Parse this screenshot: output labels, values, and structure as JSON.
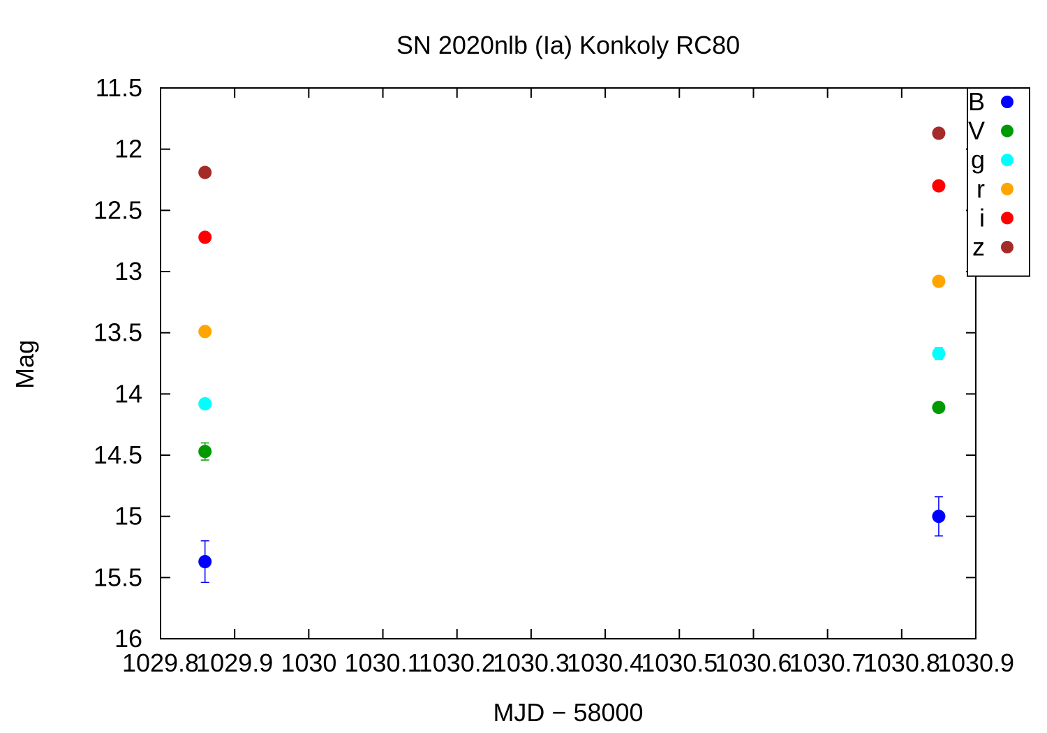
{
  "chart_data": {
    "type": "scatter",
    "title": "SN 2020nlb (Ia) Konkoly RC80",
    "xlabel": "MJD − 58000",
    "ylabel": "Mag",
    "xlim": [
      1029.8,
      1030.9
    ],
    "ylim": [
      11.5,
      16
    ],
    "y_inverted": true,
    "x_ticks": [
      "1029.8",
      "1029.9",
      "1030",
      "1030.1",
      "1030.2",
      "1030.3",
      "1030.4",
      "1030.5",
      "1030.6",
      "1030.7",
      "1030.8",
      "1030.9"
    ],
    "y_ticks": [
      "11.5",
      "12",
      "12.5",
      "13",
      "13.5",
      "14",
      "14.5",
      "15",
      "15.5",
      "16"
    ],
    "grid": false,
    "legend_position": "top-right",
    "series": [
      {
        "name": "B",
        "color": "#0000ff",
        "points": [
          {
            "x": 1029.86,
            "y": 15.37,
            "err": 0.17
          },
          {
            "x": 1030.85,
            "y": 15.0,
            "err": 0.16
          }
        ]
      },
      {
        "name": "V",
        "color": "#009900",
        "points": [
          {
            "x": 1029.86,
            "y": 14.47,
            "err": 0.07
          },
          {
            "x": 1030.85,
            "y": 14.11,
            "err": 0.03
          }
        ]
      },
      {
        "name": "g",
        "color": "#00ffff",
        "points": [
          {
            "x": 1029.86,
            "y": 14.08,
            "err": 0.03
          },
          {
            "x": 1030.85,
            "y": 13.67,
            "err": 0.05
          }
        ]
      },
      {
        "name": "r",
        "color": "#ffa500",
        "points": [
          {
            "x": 1029.86,
            "y": 13.49,
            "err": 0.02
          },
          {
            "x": 1030.85,
            "y": 13.08,
            "err": 0.02
          }
        ]
      },
      {
        "name": "i",
        "color": "#ff0000",
        "points": [
          {
            "x": 1029.86,
            "y": 12.72,
            "err": 0.02
          },
          {
            "x": 1030.85,
            "y": 12.3,
            "err": 0.02
          }
        ]
      },
      {
        "name": "z",
        "color": "#a52a2a",
        "points": [
          {
            "x": 1029.86,
            "y": 12.19,
            "err": 0.02
          },
          {
            "x": 1030.85,
            "y": 11.87,
            "err": 0.04
          }
        ]
      }
    ]
  }
}
